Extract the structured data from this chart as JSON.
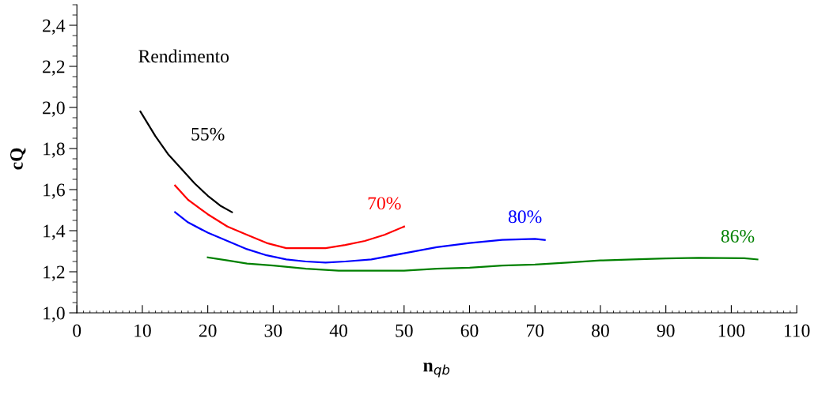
{
  "chart_data": {
    "type": "line",
    "xlabel": "n$_{qb}$",
    "ylabel": "cQ",
    "annotations": [
      "Rendimento"
    ],
    "xlim": [
      0,
      110
    ],
    "xticks": [
      0,
      10,
      20,
      30,
      40,
      50,
      60,
      70,
      80,
      90,
      100,
      110
    ],
    "ylim": [
      1.0,
      2.5
    ],
    "yticks": [
      {
        "value": 1.0,
        "label": "1,0"
      },
      {
        "value": 1.2,
        "label": "1,2"
      },
      {
        "value": 1.4,
        "label": "1,4"
      },
      {
        "value": 1.6,
        "label": "1,6"
      },
      {
        "value": 1.8,
        "label": "1,8"
      },
      {
        "value": 2.0,
        "label": "2,0"
      },
      {
        "value": 2.2,
        "label": "2,2"
      },
      {
        "value": 2.4,
        "label": "2,4"
      }
    ],
    "grid": false,
    "legend": false,
    "marker": "none",
    "line_style": "solid",
    "series": [
      {
        "name": "55%",
        "color": "#000000",
        "x": [
          9.7,
          12,
          14,
          16,
          18,
          20,
          22,
          23.7
        ],
        "values": [
          1.98,
          1.86,
          1.77,
          1.7,
          1.63,
          1.57,
          1.52,
          1.49
        ]
      },
      {
        "name": "70%",
        "color": "#ff0000",
        "x": [
          15,
          17,
          20,
          23,
          26,
          29,
          32,
          35,
          38,
          41,
          44,
          47,
          50
        ],
        "values": [
          1.62,
          1.55,
          1.48,
          1.42,
          1.38,
          1.34,
          1.315,
          1.315,
          1.315,
          1.33,
          1.35,
          1.38,
          1.42
        ]
      },
      {
        "name": "80%",
        "color": "#0000ff",
        "x": [
          15,
          17,
          20,
          23,
          26,
          29,
          32,
          35,
          38,
          41,
          45,
          50,
          55,
          60,
          65,
          70,
          71.5
        ],
        "values": [
          1.49,
          1.44,
          1.39,
          1.35,
          1.31,
          1.28,
          1.26,
          1.25,
          1.245,
          1.25,
          1.26,
          1.29,
          1.32,
          1.34,
          1.355,
          1.36,
          1.355
        ]
      },
      {
        "name": "86%",
        "color": "#008000",
        "x": [
          20,
          23,
          26,
          30,
          35,
          40,
          45,
          50,
          55,
          60,
          65,
          70,
          75,
          80,
          85,
          90,
          95,
          102,
          104
        ],
        "values": [
          1.27,
          1.255,
          1.24,
          1.23,
          1.215,
          1.205,
          1.205,
          1.205,
          1.215,
          1.22,
          1.23,
          1.235,
          1.245,
          1.255,
          1.26,
          1.265,
          1.268,
          1.266,
          1.26
        ]
      }
    ]
  }
}
